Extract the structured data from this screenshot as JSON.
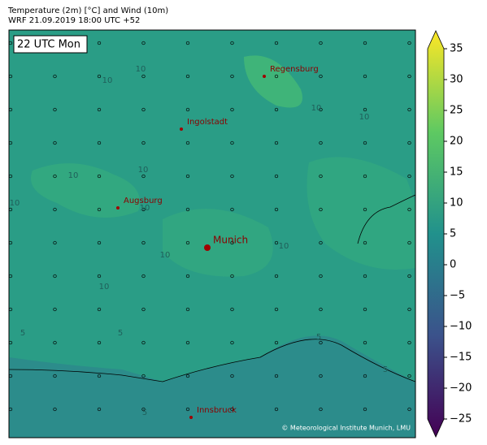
{
  "header": {
    "title": "Temperature (2m) [°C] and Wind (10m)",
    "subtitle": "WRF 21.09.2019 18:00 UTC +52"
  },
  "map": {
    "time_label": "22 UTC Mon",
    "cities": [
      "Regensburg",
      "Ingolstadt",
      "Augsburg",
      "Munich",
      "Innsbruck"
    ],
    "contour_labels": [
      "10",
      "10",
      "10",
      "10",
      "10",
      "10",
      "10",
      "10",
      "10",
      "10",
      "10",
      "5",
      "5",
      "5",
      "5",
      "5"
    ],
    "credit": "© Meteorological Institute Munich, LMU"
  },
  "colorbar": {
    "lim": [
      -25,
      35
    ],
    "ticks": [
      {
        "value": -25,
        "label": "−25"
      },
      {
        "value": -20,
        "label": "−20"
      },
      {
        "value": -15,
        "label": "−15"
      },
      {
        "value": -10,
        "label": "−10"
      },
      {
        "value": -5,
        "label": "−5"
      },
      0,
      5,
      10,
      15,
      20,
      25,
      30,
      35
    ]
  }
}
